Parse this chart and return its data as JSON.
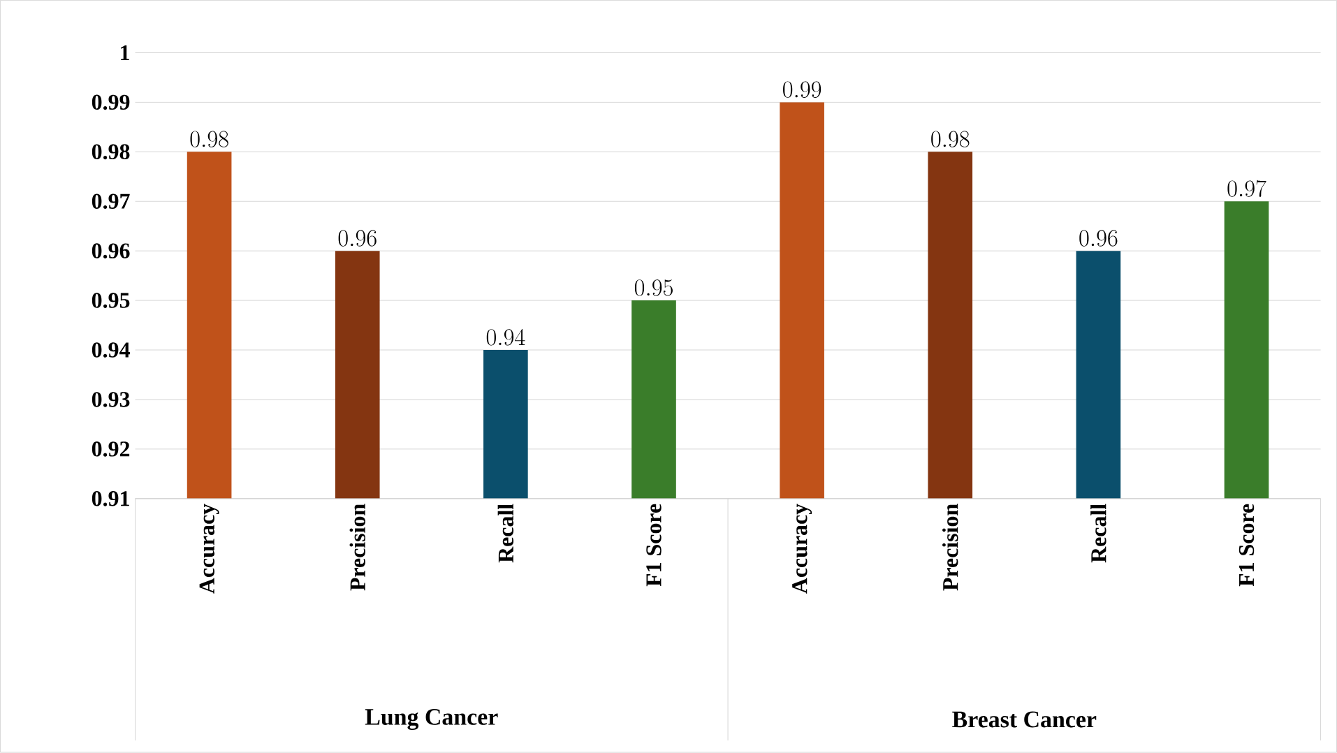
{
  "chart_data": {
    "type": "bar",
    "categories": [
      "Accuracy",
      "Precision",
      "Recall",
      "F1 Score",
      "Accuracy",
      "Precision",
      "Recall",
      "F1 Score"
    ],
    "values": [
      0.98,
      0.96,
      0.94,
      0.95,
      0.99,
      0.98,
      0.96,
      0.97
    ],
    "colors": [
      "#c0521a",
      "#843511",
      "#0b4f6c",
      "#3a7d2a",
      "#c0521a",
      "#843511",
      "#0b4f6c",
      "#3a7d2a"
    ],
    "ylim": [
      0.91,
      1
    ],
    "yticks": [
      0.91,
      0.92,
      0.93,
      0.94,
      0.95,
      0.96,
      0.97,
      0.98,
      0.99,
      1
    ],
    "grid": "y",
    "data_labels": true,
    "annotations": [
      "Lung Cancer",
      "Breast Cancer"
    ]
  }
}
